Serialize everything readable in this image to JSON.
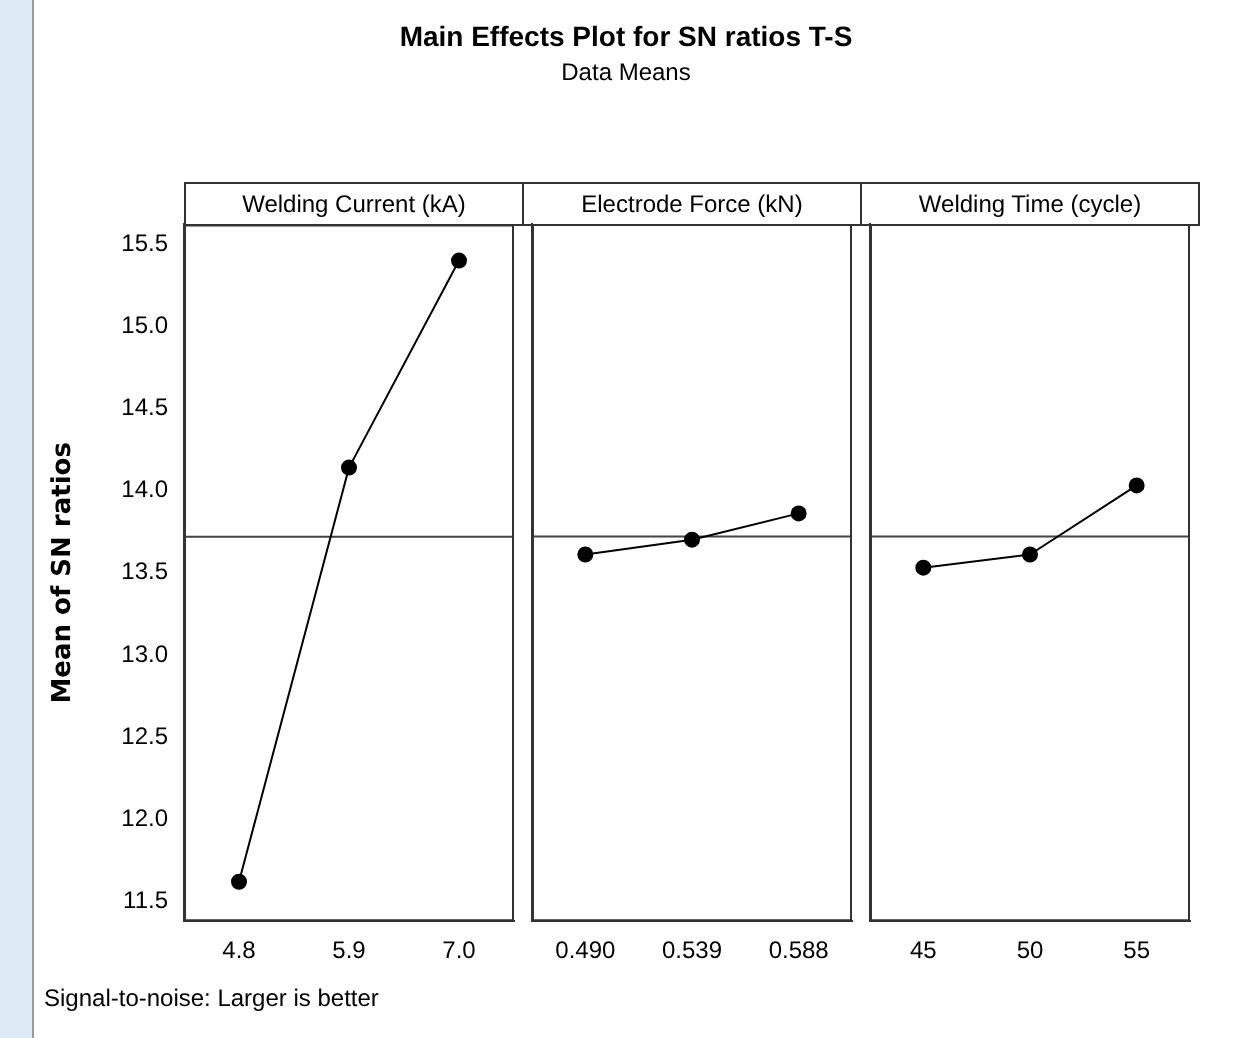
{
  "chart_data": [
    {
      "type": "line",
      "title": "Main Effects Plot for SN ratios T-S",
      "xlabel": "Welding Current (kA)",
      "ylabel": "Mean of SN ratios",
      "annotations": [
        "Signal-to-noise: Larger is better"
      ],
      "categories": [
        "4.8",
        "5.9",
        "7.0"
      ],
      "series": [
        {
          "color": "#000000",
          "values": [
            11.62,
            14.14,
            15.4
          ]
        }
      ],
      "ylim": [
        11.38,
        15.62
      ],
      "yticks": [
        {
          "value": 11.5,
          "label": "11.5"
        },
        {
          "value": 12,
          "label": "12.0"
        },
        {
          "value": 12.5,
          "label": "12.5"
        },
        {
          "value": 13,
          "label": "13.0"
        },
        {
          "value": 13.5,
          "label": "13.5"
        },
        {
          "value": 14,
          "label": "14.0"
        },
        {
          "value": 14.5,
          "label": "14.5"
        },
        {
          "value": 15,
          "label": "15.0"
        },
        {
          "value": 15.5,
          "label": "15.5"
        }
      ],
      "ref_lines": [
        {
          "axis": "y",
          "value": 13.72,
          "color": "#444444"
        }
      ],
      "marker": "circle",
      "grid": false,
      "legend": false
    },
    {
      "type": "line",
      "subtitle": "Data Means",
      "xlabel": "Electrode Force (kN)",
      "categories": [
        "0.490",
        "0.539",
        "0.588"
      ],
      "series": [
        {
          "color": "#000000",
          "values": [
            13.61,
            13.7,
            13.86
          ]
        }
      ],
      "ylim": [
        11.38,
        15.62
      ],
      "tick_labels": "x",
      "ref_lines": [
        {
          "axis": "y",
          "value": 13.72,
          "color": "#444444"
        }
      ],
      "marker": "circle",
      "grid": false,
      "legend": false
    },
    {
      "type": "line",
      "xlabel": "Welding Time (cycle)",
      "categories": [
        "45",
        "50",
        "55"
      ],
      "series": [
        {
          "color": "#000000",
          "values": [
            13.53,
            13.61,
            14.03
          ]
        }
      ],
      "ylim": [
        11.38,
        15.62
      ],
      "tick_labels": "x",
      "ref_lines": [
        {
          "axis": "y",
          "value": 13.72,
          "color": "#444444"
        }
      ],
      "marker": "circle",
      "grid": false,
      "legend": false
    }
  ]
}
